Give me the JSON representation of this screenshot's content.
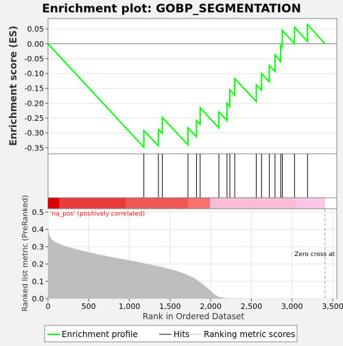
{
  "title": "Enrichment plot: GOBP_SEGMENTATION",
  "colors": {
    "es_line": "#00ff00",
    "hit_line": "#000000",
    "metric_fill": "#bebebe",
    "zero_line": "#808080",
    "pos_label": "#ff0000",
    "heat_segments": [
      "#dd0000",
      "#e83c3c",
      "#f15656",
      "#f87070",
      "#fbbcd6",
      "#fbc7e6"
    ]
  },
  "legend": {
    "items": [
      "Enrichment profile",
      "Hits",
      "Ranking metric scores"
    ]
  },
  "annotations": {
    "pos_label": "'na_pos' (positively correlated)",
    "zero_cross": "Zero cross at"
  },
  "chart_data": [
    {
      "id": "es",
      "type": "line",
      "ylabel": "Enrichment score (ES)",
      "xlim": [
        0,
        3550
      ],
      "ylim": [
        -0.37,
        0.085
      ],
      "yticks": [
        0.05,
        0.0,
        -0.05,
        -0.1,
        -0.15,
        -0.2,
        -0.25,
        -0.3,
        -0.35
      ],
      "ytick_labels": [
        "0.05",
        "0.00",
        "-0.05",
        "-0.10",
        "-0.15",
        "-0.20",
        "-0.25",
        "-0.30",
        "-0.35"
      ],
      "series": [
        {
          "name": "Enrichment profile",
          "points": [
            [
              0,
              0.0
            ],
            [
              1178,
              -0.348
            ],
            [
              1178,
              -0.292
            ],
            [
              1357,
              -0.343
            ],
            [
              1357,
              -0.288
            ],
            [
              1405,
              -0.301
            ],
            [
              1405,
              -0.248
            ],
            [
              1720,
              -0.34
            ],
            [
              1720,
              -0.283
            ],
            [
              1825,
              -0.313
            ],
            [
              1825,
              -0.259
            ],
            [
              1870,
              -0.271
            ],
            [
              1870,
              -0.215
            ],
            [
              2100,
              -0.283
            ],
            [
              2100,
              -0.229
            ],
            [
              2200,
              -0.258
            ],
            [
              2200,
              -0.2
            ],
            [
              2235,
              -0.212
            ],
            [
              2235,
              -0.155
            ],
            [
              2295,
              -0.173
            ],
            [
              2295,
              -0.117
            ],
            [
              2560,
              -0.194
            ],
            [
              2560,
              -0.138
            ],
            [
              2625,
              -0.156
            ],
            [
              2625,
              -0.1
            ],
            [
              2720,
              -0.128
            ],
            [
              2720,
              -0.073
            ],
            [
              2790,
              -0.093
            ],
            [
              2790,
              -0.037
            ],
            [
              2860,
              -0.06
            ],
            [
              2860,
              -0.005
            ],
            [
              2880,
              -0.01
            ],
            [
              2880,
              0.045
            ],
            [
              3030,
              0.001
            ],
            [
              3030,
              0.056
            ],
            [
              3190,
              0.008
            ],
            [
              3190,
              0.065
            ],
            [
              3405,
              0.0
            ]
          ]
        }
      ]
    },
    {
      "id": "hits",
      "type": "scatter",
      "series": [
        {
          "name": "Hits",
          "x": [
            1178,
            1357,
            1405,
            1720,
            1825,
            1870,
            2100,
            2200,
            2235,
            2295,
            2560,
            2625,
            2720,
            2790,
            2860,
            2880,
            3030,
            3190
          ]
        }
      ]
    },
    {
      "id": "metric",
      "type": "area",
      "xlabel": "Rank in Ordered Dataset",
      "ylabel": "Ranked list metric (PreRanked)",
      "xlim": [
        0,
        3550
      ],
      "ylim": [
        0,
        0.52
      ],
      "xticks": [
        0,
        500,
        1000,
        1500,
        2000,
        2500,
        3000,
        3500
      ],
      "xtick_labels": [
        "0",
        "500",
        "1,000",
        "1,500",
        "2,000",
        "2,500",
        "3,000",
        "3,500"
      ],
      "yticks": [
        0.0,
        0.1,
        0.2,
        0.3,
        0.4,
        0.5
      ],
      "ytick_labels": [
        "0.0",
        "0.1",
        "0.2",
        "0.3",
        "0.4",
        "0.5"
      ],
      "zero_cross": 3405,
      "series": [
        {
          "name": "Ranking metric scores",
          "points": [
            [
              0,
              0.41
            ],
            [
              15,
              0.37
            ],
            [
              40,
              0.345
            ],
            [
              100,
              0.325
            ],
            [
              200,
              0.305
            ],
            [
              400,
              0.28
            ],
            [
              600,
              0.258
            ],
            [
              800,
              0.238
            ],
            [
              1000,
              0.222
            ],
            [
              1200,
              0.203
            ],
            [
              1400,
              0.183
            ],
            [
              1600,
              0.158
            ],
            [
              1700,
              0.14
            ],
            [
              1800,
              0.118
            ],
            [
              1900,
              0.085
            ],
            [
              2000,
              0.045
            ],
            [
              2060,
              0.02
            ],
            [
              2120,
              0.008
            ],
            [
              2200,
              0.002
            ],
            [
              2500,
              0.0
            ],
            [
              3405,
              0.0
            ]
          ]
        }
      ],
      "heat_bands": [
        {
          "x0": 0,
          "x1": 140,
          "color": "#dd0000"
        },
        {
          "x0": 140,
          "x1": 960,
          "color": "#e83c3c"
        },
        {
          "x0": 960,
          "x1": 1720,
          "color": "#f15656"
        },
        {
          "x0": 1720,
          "x1": 1990,
          "color": "#f87070"
        },
        {
          "x0": 1990,
          "x1": 3060,
          "color": "#fbbcd6"
        },
        {
          "x0": 3060,
          "x1": 3405,
          "color": "#fbc7e6"
        }
      ]
    }
  ]
}
